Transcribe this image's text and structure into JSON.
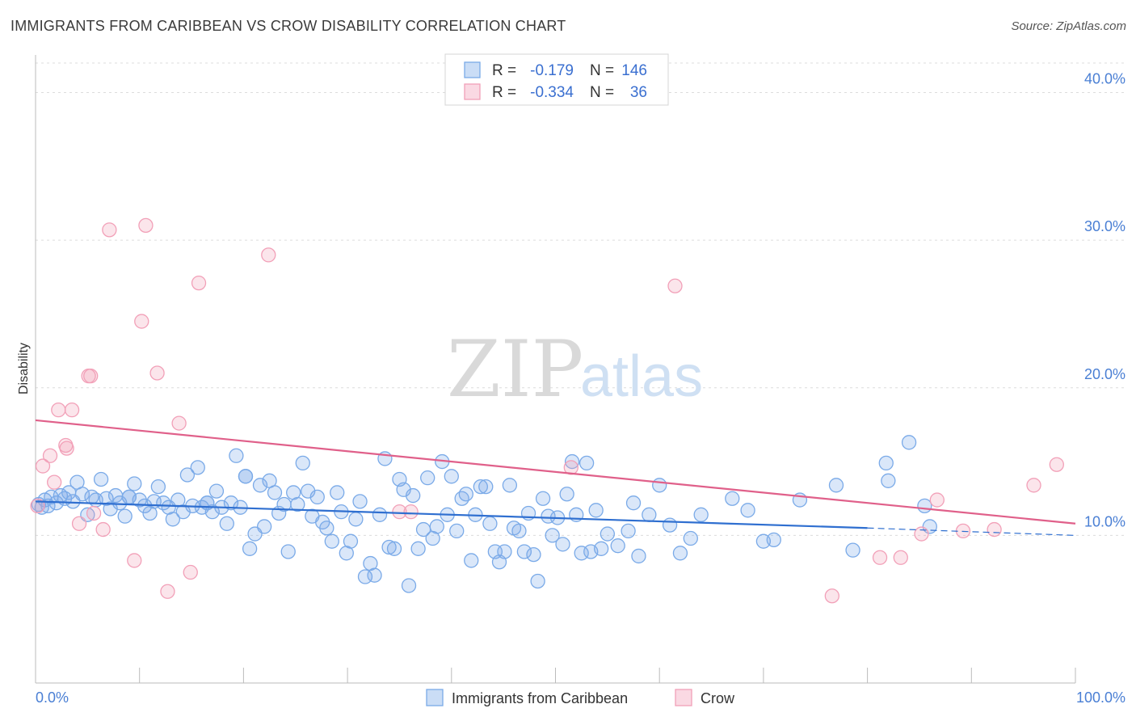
{
  "title": "IMMIGRANTS FROM CARIBBEAN VS CROW DISABILITY CORRELATION CHART",
  "source": "Source: ZipAtlas.com",
  "watermark": {
    "zip": "ZIP",
    "atlas": "atlas"
  },
  "chart_data": {
    "type": "scatter",
    "ylabel": "Disability",
    "xlim": [
      0,
      100
    ],
    "ylim": [
      0,
      42
    ],
    "x_tick_labels": [
      "0.0%",
      "100.0%"
    ],
    "y_ticks": [
      10,
      20,
      30,
      40
    ],
    "y_tick_labels": [
      "10.0%",
      "20.0%",
      "30.0%",
      "40.0%"
    ],
    "grid": true,
    "legend_top": [
      {
        "r_label": "R =",
        "r_value": "-0.179",
        "n_label": "N =",
        "n_value": "146",
        "color": "#7aaae8"
      },
      {
        "r_label": "R =",
        "r_value": "-0.334",
        "n_label": "N =",
        "n_value": "36",
        "color": "#f2a0b8"
      }
    ],
    "series": [
      {
        "name": "Immigrants from Caribbean",
        "color": "#7aaae8",
        "line_color": "#2f6fd0",
        "trend": {
          "x0": 0,
          "y0": 12.3,
          "x1": 80,
          "y1": 10.5,
          "dash_to": 100,
          "dash_y": 10.0
        },
        "points": [
          [
            0.3,
            12.1
          ],
          [
            0.6,
            11.9
          ],
          [
            0.9,
            12.4
          ],
          [
            1.2,
            12.0
          ],
          [
            1.5,
            12.6
          ],
          [
            2.0,
            12.2
          ],
          [
            2.4,
            12.7
          ],
          [
            2.8,
            12.5
          ],
          [
            3.2,
            12.9
          ],
          [
            3.6,
            12.3
          ],
          [
            4.0,
            13.6
          ],
          [
            4.5,
            12.8
          ],
          [
            5.0,
            11.4
          ],
          [
            5.4,
            12.6
          ],
          [
            5.8,
            12.4
          ],
          [
            6.3,
            13.8
          ],
          [
            6.8,
            12.5
          ],
          [
            7.2,
            11.8
          ],
          [
            7.7,
            12.7
          ],
          [
            8.1,
            12.2
          ],
          [
            8.6,
            11.3
          ],
          [
            9.0,
            12.6
          ],
          [
            9.5,
            13.5
          ],
          [
            10.0,
            12.4
          ],
          [
            10.5,
            12.0
          ],
          [
            11.0,
            11.5
          ],
          [
            11.4,
            12.3
          ],
          [
            11.8,
            13.3
          ],
          [
            12.3,
            12.2
          ],
          [
            12.8,
            11.9
          ],
          [
            13.2,
            11.1
          ],
          [
            13.7,
            12.4
          ],
          [
            14.2,
            11.6
          ],
          [
            14.6,
            14.1
          ],
          [
            15.1,
            12.0
          ],
          [
            15.6,
            14.6
          ],
          [
            16.0,
            11.9
          ],
          [
            16.5,
            12.2
          ],
          [
            17.0,
            11.6
          ],
          [
            17.4,
            13.0
          ],
          [
            17.9,
            11.9
          ],
          [
            18.4,
            10.8
          ],
          [
            18.8,
            12.2
          ],
          [
            19.3,
            15.4
          ],
          [
            19.7,
            11.9
          ],
          [
            20.2,
            14.0
          ],
          [
            20.6,
            9.1
          ],
          [
            21.1,
            10.1
          ],
          [
            21.6,
            13.4
          ],
          [
            22.0,
            10.6
          ],
          [
            22.5,
            13.7
          ],
          [
            23.0,
            12.9
          ],
          [
            23.4,
            11.5
          ],
          [
            23.9,
            12.1
          ],
          [
            24.3,
            8.9
          ],
          [
            24.8,
            12.9
          ],
          [
            25.2,
            12.1
          ],
          [
            25.7,
            14.9
          ],
          [
            26.2,
            13.0
          ],
          [
            26.6,
            11.3
          ],
          [
            27.1,
            12.6
          ],
          [
            27.6,
            10.9
          ],
          [
            28.0,
            10.5
          ],
          [
            28.5,
            9.6
          ],
          [
            29.0,
            12.9
          ],
          [
            29.4,
            11.6
          ],
          [
            29.9,
            8.8
          ],
          [
            30.3,
            9.6
          ],
          [
            30.8,
            11.1
          ],
          [
            31.2,
            12.3
          ],
          [
            31.7,
            7.2
          ],
          [
            32.2,
            8.1
          ],
          [
            32.6,
            7.3
          ],
          [
            33.1,
            11.4
          ],
          [
            33.6,
            15.2
          ],
          [
            34.0,
            9.2
          ],
          [
            34.5,
            9.1
          ],
          [
            35.0,
            13.8
          ],
          [
            35.4,
            13.1
          ],
          [
            35.9,
            6.6
          ],
          [
            36.3,
            12.7
          ],
          [
            36.8,
            9.1
          ],
          [
            37.3,
            10.4
          ],
          [
            37.7,
            13.9
          ],
          [
            38.2,
            9.8
          ],
          [
            38.6,
            10.6
          ],
          [
            39.1,
            15.0
          ],
          [
            39.6,
            11.4
          ],
          [
            40.0,
            14.0
          ],
          [
            40.5,
            10.3
          ],
          [
            41.0,
            12.5
          ],
          [
            41.4,
            12.8
          ],
          [
            41.9,
            8.3
          ],
          [
            42.3,
            11.4
          ],
          [
            42.8,
            13.3
          ],
          [
            43.3,
            13.3
          ],
          [
            43.7,
            10.8
          ],
          [
            44.2,
            8.9
          ],
          [
            44.6,
            8.2
          ],
          [
            45.1,
            8.9
          ],
          [
            45.6,
            13.4
          ],
          [
            46.0,
            10.5
          ],
          [
            46.5,
            10.3
          ],
          [
            47.0,
            8.9
          ],
          [
            47.4,
            11.5
          ],
          [
            47.9,
            8.7
          ],
          [
            48.3,
            6.9
          ],
          [
            48.8,
            12.5
          ],
          [
            49.3,
            11.3
          ],
          [
            49.7,
            10.0
          ],
          [
            50.2,
            11.2
          ],
          [
            50.7,
            9.4
          ],
          [
            51.1,
            12.8
          ],
          [
            51.6,
            15.0
          ],
          [
            52.0,
            11.4
          ],
          [
            52.5,
            8.8
          ],
          [
            53.0,
            14.9
          ],
          [
            53.4,
            8.9
          ],
          [
            53.9,
            11.7
          ],
          [
            54.4,
            9.1
          ],
          [
            55.0,
            10.1
          ],
          [
            56.0,
            9.3
          ],
          [
            57.0,
            10.3
          ],
          [
            57.5,
            12.2
          ],
          [
            58.0,
            8.6
          ],
          [
            59.0,
            11.4
          ],
          [
            60.0,
            13.4
          ],
          [
            61.0,
            10.7
          ],
          [
            62.0,
            8.8
          ],
          [
            63.0,
            9.8
          ],
          [
            64.0,
            11.4
          ],
          [
            67.0,
            12.5
          ],
          [
            68.5,
            11.7
          ],
          [
            70.0,
            9.6
          ],
          [
            71.0,
            9.7
          ],
          [
            73.5,
            12.4
          ],
          [
            77.0,
            13.4
          ],
          [
            78.6,
            9.0
          ],
          [
            81.8,
            14.9
          ],
          [
            82.0,
            13.7
          ],
          [
            84.0,
            16.3
          ],
          [
            85.5,
            12.0
          ],
          [
            86.0,
            10.6
          ],
          [
            20.2,
            14.0
          ],
          [
            16.5,
            12.2
          ],
          [
            9.0,
            12.6
          ]
        ]
      },
      {
        "name": "Crow",
        "color": "#f2a0b8",
        "line_color": "#e0608a",
        "trend": {
          "x0": 0,
          "y0": 17.8,
          "x1": 100,
          "y1": 10.8
        },
        "points": [
          [
            0.2,
            12.0
          ],
          [
            0.7,
            14.7
          ],
          [
            1.4,
            15.4
          ],
          [
            1.8,
            13.6
          ],
          [
            2.2,
            18.5
          ],
          [
            2.9,
            16.1
          ],
          [
            3.5,
            18.5
          ],
          [
            4.2,
            10.8
          ],
          [
            5.1,
            20.8
          ],
          [
            5.6,
            11.5
          ],
          [
            6.5,
            10.4
          ],
          [
            7.1,
            30.7
          ],
          [
            9.5,
            8.3
          ],
          [
            10.2,
            24.5
          ],
          [
            10.6,
            31.0
          ],
          [
            11.7,
            21.0
          ],
          [
            12.7,
            6.2
          ],
          [
            13.8,
            17.6
          ],
          [
            14.9,
            7.5
          ],
          [
            15.7,
            27.1
          ],
          [
            22.4,
            29.0
          ],
          [
            35.0,
            11.6
          ],
          [
            36.1,
            11.6
          ],
          [
            51.5,
            14.6
          ],
          [
            61.5,
            26.9
          ],
          [
            76.6,
            5.9
          ],
          [
            81.2,
            8.5
          ],
          [
            83.2,
            8.5
          ],
          [
            85.2,
            10.1
          ],
          [
            86.7,
            12.4
          ],
          [
            89.2,
            10.3
          ],
          [
            92.2,
            10.4
          ],
          [
            96.0,
            13.4
          ],
          [
            98.2,
            14.8
          ],
          [
            5.3,
            20.8
          ],
          [
            3.0,
            15.9
          ]
        ]
      }
    ]
  },
  "bottom_legend": [
    "Immigrants from Caribbean",
    "Crow"
  ]
}
